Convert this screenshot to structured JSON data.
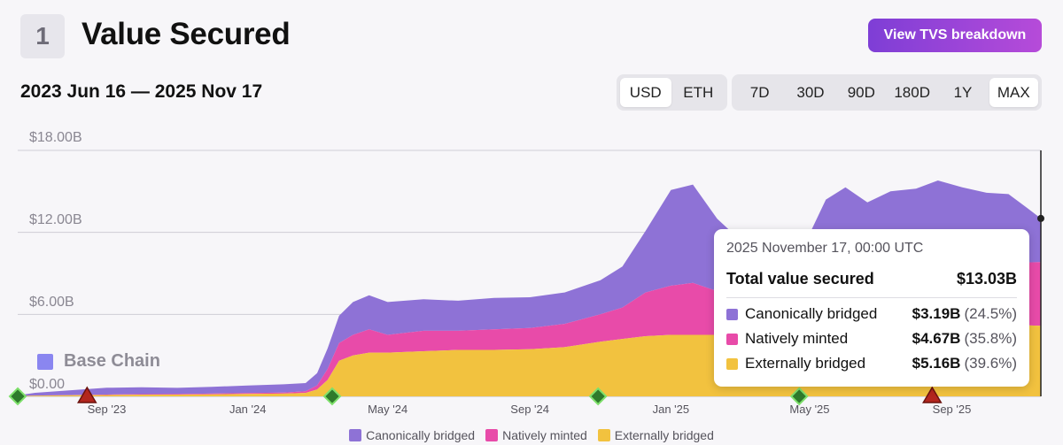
{
  "header": {
    "section_number": "1",
    "title": "Value Secured",
    "breakdown_button": "View TVS breakdown",
    "date_range": "2023 Jun 16 — 2025 Nov 17"
  },
  "currency_toggle": {
    "options": [
      "USD",
      "ETH"
    ],
    "selected": "USD"
  },
  "range_toggle": {
    "options": [
      "7D",
      "30D",
      "90D",
      "180D",
      "1Y",
      "MAX"
    ],
    "selected": "MAX"
  },
  "watermark": "Base Chain",
  "chart_data": {
    "type": "area",
    "stacked": true,
    "ylim": [
      0,
      18
    ],
    "y_ticks": [
      "$0.00",
      "$6.00B",
      "$12.00B",
      "$18.00B"
    ],
    "x_tick_labels": [
      "Sep '23",
      "Jan '24",
      "May '24",
      "Sep '24",
      "Jan '25",
      "May '25",
      "Sep '25"
    ],
    "x_tick_dates": [
      "2023-09-01",
      "2024-01-01",
      "2024-05-01",
      "2024-09-01",
      "2025-01-01",
      "2025-05-01",
      "2025-09-01"
    ],
    "x_range": [
      "2023-06-16",
      "2025-11-17"
    ],
    "x": [
      "2023-06-16",
      "2023-07-01",
      "2023-08-01",
      "2023-09-01",
      "2023-10-01",
      "2023-11-01",
      "2023-12-01",
      "2024-01-01",
      "2024-02-01",
      "2024-02-20",
      "2024-03-01",
      "2024-03-10",
      "2024-03-20",
      "2024-04-01",
      "2024-04-15",
      "2024-05-01",
      "2024-06-01",
      "2024-07-01",
      "2024-08-01",
      "2024-09-01",
      "2024-10-01",
      "2024-11-01",
      "2024-11-20",
      "2024-12-10",
      "2025-01-01",
      "2025-01-20",
      "2025-02-10",
      "2025-03-01",
      "2025-03-20",
      "2025-04-10",
      "2025-05-01",
      "2025-05-15",
      "2025-06-01",
      "2025-06-20",
      "2025-07-10",
      "2025-08-01",
      "2025-08-20",
      "2025-09-10",
      "2025-10-01",
      "2025-10-20",
      "2025-11-05",
      "2025-11-17"
    ],
    "series": [
      {
        "name": "Externally bridged",
        "color": "#f2c23f",
        "values": [
          0.02,
          0.05,
          0.08,
          0.1,
          0.12,
          0.13,
          0.15,
          0.18,
          0.2,
          0.25,
          0.5,
          1.2,
          2.6,
          3.0,
          3.2,
          3.2,
          3.3,
          3.4,
          3.4,
          3.45,
          3.6,
          4.0,
          4.2,
          4.4,
          4.5,
          4.5,
          4.5,
          4.4,
          4.4,
          4.5,
          4.6,
          4.7,
          4.8,
          4.9,
          5.0,
          5.0,
          5.0,
          5.0,
          5.1,
          5.1,
          5.2,
          5.16
        ]
      },
      {
        "name": "Natively minted",
        "color": "#e84ba9",
        "values": [
          0.0,
          0.01,
          0.02,
          0.03,
          0.04,
          0.04,
          0.05,
          0.06,
          0.08,
          0.12,
          0.3,
          0.8,
          1.3,
          1.5,
          1.7,
          1.3,
          1.5,
          1.4,
          1.5,
          1.55,
          1.7,
          2.0,
          2.3,
          3.2,
          3.6,
          3.8,
          3.2,
          2.8,
          2.5,
          2.6,
          2.8,
          3.2,
          3.5,
          3.8,
          4.0,
          4.2,
          4.4,
          4.3,
          4.3,
          4.4,
          4.6,
          4.67
        ]
      },
      {
        "name": "Canonically bridged",
        "color": "#8e72d6",
        "values": [
          0.05,
          0.2,
          0.35,
          0.5,
          0.5,
          0.45,
          0.5,
          0.55,
          0.6,
          0.6,
          0.9,
          1.5,
          2.0,
          2.4,
          2.5,
          2.4,
          2.3,
          2.2,
          2.3,
          2.25,
          2.3,
          2.5,
          3.0,
          4.5,
          7.0,
          7.2,
          5.3,
          4.3,
          3.3,
          3.5,
          4.5,
          6.5,
          7.0,
          5.5,
          6.0,
          6.0,
          6.4,
          6.0,
          5.5,
          5.3,
          4.0,
          3.19
        ]
      }
    ],
    "markers": [
      {
        "date": "2023-06-16",
        "kind": "up",
        "color": "#3bb54a"
      },
      {
        "date": "2023-08-15",
        "kind": "down",
        "color": "#b3261e"
      },
      {
        "date": "2024-03-14",
        "kind": "up",
        "color": "#3bb54a"
      },
      {
        "date": "2024-10-30",
        "kind": "up",
        "color": "#3bb54a"
      },
      {
        "date": "2025-04-22",
        "kind": "up",
        "color": "#3bb54a"
      },
      {
        "date": "2025-08-15",
        "kind": "down",
        "color": "#b3261e"
      }
    ]
  },
  "tooltip": {
    "date": "2025 November 17, 00:00 UTC",
    "total_label": "Total value secured",
    "total_value": "$13.03B",
    "rows": [
      {
        "label": "Canonically bridged",
        "value": "$3.19B",
        "pct": "(24.5%)",
        "color": "#8e72d6"
      },
      {
        "label": "Natively minted",
        "value": "$4.67B",
        "pct": "(35.8%)",
        "color": "#e84ba9"
      },
      {
        "label": "Externally bridged",
        "value": "$5.16B",
        "pct": "(39.6%)",
        "color": "#f2c23f"
      }
    ]
  },
  "legend": [
    {
      "label": "Canonically bridged",
      "color": "#8e72d6"
    },
    {
      "label": "Natively minted",
      "color": "#e84ba9"
    },
    {
      "label": "Externally bridged",
      "color": "#f2c23f"
    }
  ]
}
